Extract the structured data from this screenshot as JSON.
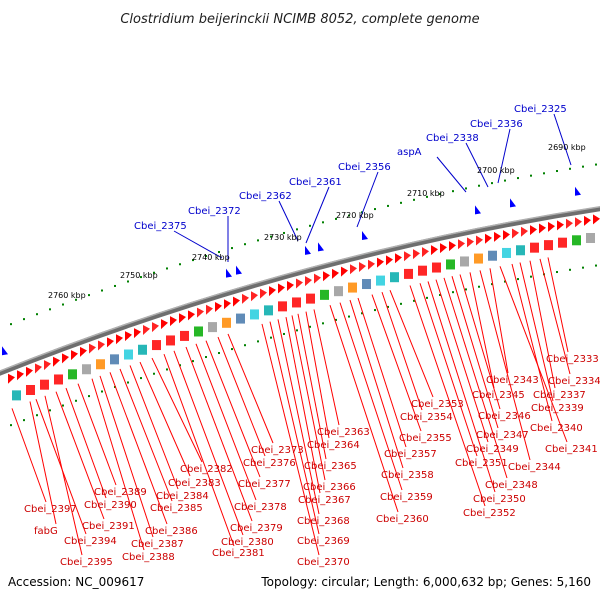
{
  "title": "Clostridium beijerinckii NCIMB 8052, complete genome",
  "footer": {
    "accession": "Accession: NC_009617",
    "topology": "Topology: circular; Length: 6,000,632 bp; Genes: 5,160"
  },
  "colors": {
    "backbone": "#808080",
    "forward_arrow": "#ff0000",
    "reverse_arrow": "#0000ff",
    "label_line_red": "#ff0000",
    "label_line_blue": "#0000cc",
    "tick": "#008000"
  },
  "kbp_ticks": [
    "2760 kbp",
    "2750 kbp",
    "2740 kbp",
    "2730 kbp",
    "2720 kbp",
    "2710 kbp",
    "2700 kbp",
    "2690 kbp"
  ],
  "blue_labels": [
    "Cbei_2375",
    "Cbei_2372",
    "Cbei_2362",
    "Cbei_2361",
    "Cbei_2356",
    "aspA",
    "Cbei_2338",
    "Cbei_2336",
    "Cbei_2325"
  ],
  "red_labels": [
    "Cbei_2397",
    "fabG",
    "Cbei_2394",
    "Cbei_2395",
    "Cbei_2391",
    "Cbei_2390",
    "Cbei_2389",
    "Cbei_2388",
    "Cbei_2387",
    "Cbei_2386",
    "Cbei_2385",
    "Cbei_2384",
    "Cbei_2383",
    "Cbei_2382",
    "Cbei_2381",
    "Cbei_2380",
    "Cbei_2379",
    "Cbei_2378",
    "Cbei_2377",
    "Cbei_2376",
    "Cbei_2373",
    "Cbei_2370",
    "Cbei_2369",
    "Cbei_2368",
    "Cbei_2367",
    "Cbei_2366",
    "Cbei_2365",
    "Cbei_2364",
    "Cbei_2363",
    "Cbei_2360",
    "Cbei_2359",
    "Cbei_2358",
    "Cbei_2357",
    "Cbei_2355",
    "Cbei_2354",
    "Cbei_2353",
    "Cbei_2352",
    "Cbei_2351",
    "Cbei_2350",
    "Cbei_2349",
    "Cbei_2348",
    "Cbei_2347",
    "Cbei_2346",
    "Cbei_2345",
    "Cbei_2344",
    "Cbei_2343",
    "Cbei_2341",
    "Cbei_2340",
    "Cbei_2339",
    "Cbei_2337",
    "Cbei_2334",
    "Cbei_2333"
  ]
}
